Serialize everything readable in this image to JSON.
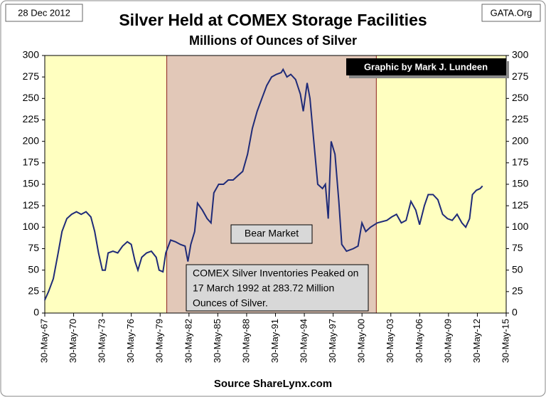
{
  "chart_data": {
    "type": "line",
    "title": "Silver Held at COMEX Storage Facilities",
    "subtitle": "Millions of Ounces of Silver",
    "date": "28 Dec 2012",
    "site": "GATA.Org",
    "credit": "Graphic by Mark J. Lundeen",
    "source": "Source ShareLynx.com",
    "region_label": "Bear Market",
    "annotation": [
      "COMEX Silver Inventories Peaked on",
      "17 March 1992 at 283.72 Million",
      "Ounces of Silver."
    ],
    "regions": [
      {
        "x": [
          1980.1,
          2001.9
        ],
        "color": "#e2c8b8"
      }
    ],
    "background": "#ffffc0",
    "xlim": [
      1967.41,
      2015.41
    ],
    "ylim": [
      0,
      300
    ],
    "yticks": [
      0,
      25,
      50,
      75,
      100,
      125,
      150,
      175,
      200,
      225,
      250,
      275,
      300
    ],
    "xticks": [
      {
        "value": 1967.41,
        "label": "30-May-67"
      },
      {
        "value": 1970.41,
        "label": "30-May-70"
      },
      {
        "value": 1973.41,
        "label": "30-May-73"
      },
      {
        "value": 1976.41,
        "label": "30-May-76"
      },
      {
        "value": 1979.41,
        "label": "30-May-79"
      },
      {
        "value": 1982.41,
        "label": "30-May-82"
      },
      {
        "value": 1985.41,
        "label": "30-May-85"
      },
      {
        "value": 1988.41,
        "label": "30-May-88"
      },
      {
        "value": 1991.41,
        "label": "30-May-91"
      },
      {
        "value": 1994.41,
        "label": "30-May-94"
      },
      {
        "value": 1997.41,
        "label": "30-May-97"
      },
      {
        "value": 2000.41,
        "label": "30-May-00"
      },
      {
        "value": 2003.41,
        "label": "30-May-03"
      },
      {
        "value": 2006.41,
        "label": "30-May-06"
      },
      {
        "value": 2009.41,
        "label": "30-May-09"
      },
      {
        "value": 2012.41,
        "label": "30-May-12"
      },
      {
        "value": 2015.41,
        "label": "30-May-15"
      }
    ],
    "series": [
      {
        "color": "#1f2b78",
        "x": [
          1967.4,
          1967.8,
          1968.3,
          1968.8,
          1969.2,
          1969.7,
          1970.2,
          1970.7,
          1971.2,
          1971.7,
          1972.2,
          1972.6,
          1973.0,
          1973.4,
          1973.7,
          1974.0,
          1974.5,
          1975.0,
          1975.5,
          1976.0,
          1976.4,
          1976.8,
          1977.1,
          1977.5,
          1978.0,
          1978.5,
          1979.0,
          1979.3,
          1979.7,
          1980.0,
          1980.5,
          1981.0,
          1981.5,
          1982.0,
          1982.3,
          1982.6,
          1983.0,
          1983.3,
          1983.8,
          1984.3,
          1984.7,
          1985.0,
          1985.5,
          1986.0,
          1986.5,
          1987.0,
          1987.5,
          1988.0,
          1988.5,
          1989.0,
          1989.5,
          1990.0,
          1990.5,
          1991.0,
          1991.5,
          1992.0,
          1992.2,
          1992.6,
          1993.0,
          1993.5,
          1994.0,
          1994.3,
          1994.7,
          1995.0,
          1995.4,
          1995.8,
          1996.3,
          1996.6,
          1996.9,
          1997.2,
          1997.6,
          1998.0,
          1998.3,
          1998.8,
          1999.5,
          2000.0,
          2000.4,
          2000.8,
          2001.3,
          2002.0,
          2003.0,
          2003.5,
          2004.0,
          2004.5,
          2005.0,
          2005.5,
          2006.0,
          2006.4,
          2006.9,
          2007.3,
          2007.8,
          2008.3,
          2008.8,
          2009.3,
          2009.8,
          2010.3,
          2010.8,
          2011.2,
          2011.6,
          2011.9,
          2012.3,
          2012.7,
          2012.95
        ],
        "values": [
          15,
          25,
          40,
          70,
          95,
          110,
          115,
          118,
          115,
          118,
          112,
          95,
          70,
          50,
          50,
          70,
          72,
          70,
          78,
          83,
          80,
          60,
          50,
          65,
          70,
          72,
          65,
          50,
          48,
          70,
          85,
          83,
          80,
          78,
          60,
          80,
          95,
          128,
          120,
          110,
          105,
          140,
          150,
          150,
          155,
          155,
          160,
          165,
          185,
          215,
          235,
          250,
          265,
          275,
          278,
          280,
          283.72,
          275,
          278,
          272,
          255,
          235,
          268,
          250,
          200,
          150,
          145,
          150,
          110,
          200,
          185,
          130,
          80,
          72,
          75,
          78,
          105,
          95,
          100,
          105,
          108,
          112,
          115,
          105,
          108,
          130,
          120,
          103,
          125,
          138,
          138,
          132,
          115,
          110,
          108,
          115,
          105,
          100,
          110,
          138,
          143,
          145,
          148
        ]
      }
    ]
  }
}
